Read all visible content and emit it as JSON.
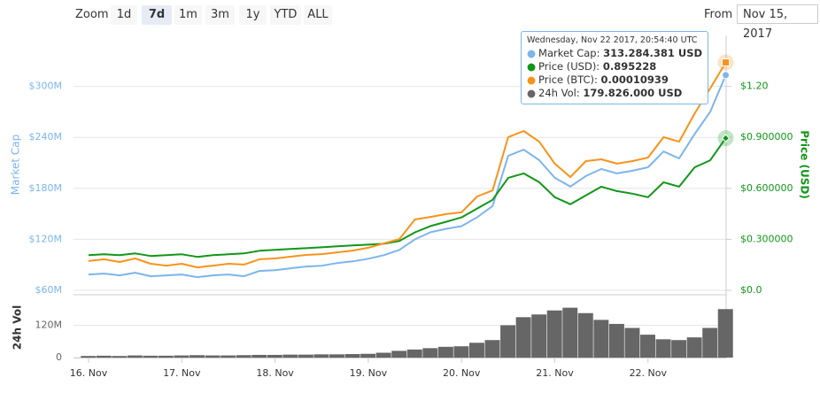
{
  "toolbar": {
    "zoom": "Zoom",
    "buttons": [
      "1d",
      "7d",
      "1m",
      "3m",
      "1y",
      "YTD",
      "ALL"
    ],
    "selected": "7d",
    "from": "From",
    "from_date": "Nov 15, 2017"
  },
  "tooltip": {
    "header": "Wednesday, Nov 22 2017, 20:54:40 UTC",
    "rows": [
      {
        "label": "Market Cap:",
        "value": "313.284.381 USD"
      },
      {
        "label": "Price (USD):",
        "value": "0.895228"
      },
      {
        "label": "Price (BTC):",
        "value": "0.00010939"
      },
      {
        "label": "24h Vol:",
        "value": "179.826.000 USD"
      }
    ]
  },
  "chart_data": {
    "type": "line",
    "categories": [
      "16. Nov",
      null,
      null,
      null,
      null,
      null,
      "17. Nov",
      null,
      null,
      null,
      null,
      null,
      "18. Nov",
      null,
      null,
      null,
      null,
      null,
      "19. Nov",
      null,
      null,
      null,
      null,
      null,
      "20. Nov",
      null,
      null,
      null,
      null,
      null,
      "21. Nov",
      null,
      null,
      null,
      null,
      null,
      "22. Nov",
      null,
      null,
      null,
      null,
      null
    ],
    "series": [
      {
        "name": "Market Cap",
        "color": "#7cb5ec",
        "axis": "y",
        "values": [
          78600000,
          79700000,
          77600000,
          80700000,
          76600000,
          77600000,
          78600000,
          75500000,
          77600000,
          78600000,
          76600000,
          82800000,
          83800000,
          85900000,
          88000000,
          89000000,
          92100000,
          94100000,
          97200000,
          101400000,
          107600000,
          120000000,
          128300000,
          132400000,
          135500000,
          145900000,
          159300000,
          218300000,
          225500000,
          213100000,
          192400000,
          182100000,
          194500000,
          202800000,
          197600000,
          200700000,
          204800000,
          223400000,
          215200000,
          244100000,
          270000000,
          313284381
        ]
      },
      {
        "name": "Price (USD)",
        "color": "#109618",
        "axis": "y2",
        "values": [
          0.207,
          0.212,
          0.207,
          0.217,
          0.202,
          0.207,
          0.212,
          0.197,
          0.207,
          0.212,
          0.217,
          0.233,
          0.238,
          0.243,
          0.248,
          0.253,
          0.259,
          0.264,
          0.269,
          0.274,
          0.29,
          0.341,
          0.378,
          0.403,
          0.429,
          0.481,
          0.533,
          0.662,
          0.688,
          0.636,
          0.548,
          0.507,
          0.559,
          0.61,
          0.584,
          0.569,
          0.548,
          0.636,
          0.61,
          0.724,
          0.765,
          0.895228
        ]
      },
      {
        "name": "Price (BTC)",
        "color": "#f7931a",
        "axis": "y3",
        "values": [
          3.15e-05,
          3.22e-05,
          3.11e-05,
          3.25e-05,
          3.04e-05,
          2.97e-05,
          3.04e-05,
          2.9e-05,
          2.97e-05,
          3.04e-05,
          3.01e-05,
          3.22e-05,
          3.25e-05,
          3.32e-05,
          3.39e-05,
          3.42e-05,
          3.49e-05,
          3.56e-05,
          3.67e-05,
          3.84e-05,
          4.01e-05,
          4.78e-05,
          4.88e-05,
          4.99e-05,
          5.06e-05,
          5.68e-05,
          5.92e-05,
          8.01e-05,
          8.25e-05,
          7.83e-05,
          6.97e-05,
          6.44e-05,
          7.07e-05,
          7.14e-05,
          6.97e-05,
          7.07e-05,
          7.21e-05,
          8.01e-05,
          7.83e-05,
          8.94e-05,
          9.92e-05,
          0.00010939
        ]
      },
      {
        "name": "24h Vol",
        "color": "#666666",
        "axis": "vol",
        "type": "bar",
        "values": [
          6000000,
          7000000,
          6000000,
          8000000,
          7000000,
          7000000,
          8000000,
          9000000,
          8000000,
          8000000,
          9000000,
          10000000,
          10000000,
          11000000,
          11000000,
          12000000,
          12000000,
          13000000,
          14000000,
          18000000,
          25000000,
          30000000,
          35000000,
          40000000,
          42000000,
          55000000,
          65000000,
          120000000,
          150000000,
          160000000,
          175000000,
          185000000,
          165000000,
          140000000,
          125000000,
          110000000,
          85000000,
          68000000,
          65000000,
          75000000,
          110000000,
          179826000
        ]
      }
    ],
    "ylim": [
      60000000,
      360000000
    ],
    "yticks": [
      {
        "value": 60000000,
        "label": "$60M"
      },
      {
        "value": 120000000,
        "label": "$120M"
      },
      {
        "value": 180000000,
        "label": "$180M"
      },
      {
        "value": 240000000,
        "label": "$240M"
      },
      {
        "value": 300000000,
        "label": "$300M"
      }
    ],
    "y2lim": [
      0,
      1.5
    ],
    "y2ticks": [
      {
        "value": 0,
        "label": "$0.0"
      },
      {
        "value": 0.3,
        "label": "$0.300000"
      },
      {
        "value": 0.6,
        "label": "$0.600000"
      },
      {
        "value": 0.9,
        "label": "$0.900000"
      },
      {
        "value": 1.2,
        "label": "$1.20"
      }
    ],
    "y3lim": [
      2e-05,
      0.00012
    ],
    "vollim": [
      0,
      220000000
    ],
    "volticks": [
      0,
      {
        "value": 120000000,
        "label": "120M"
      }
    ],
    "grid": true
  }
}
